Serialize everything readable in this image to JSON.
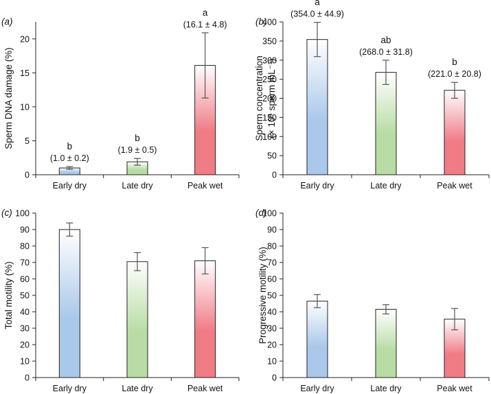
{
  "chart_data": [
    {
      "type": "bar",
      "panel_label": "a",
      "categories": [
        "Early dry",
        "Late dry",
        "Peak wet"
      ],
      "values": [
        1.0,
        1.9,
        16.1
      ],
      "errors": [
        0.2,
        0.5,
        4.8
      ],
      "significance": [
        "b",
        "b",
        "a"
      ],
      "annotations": [
        "(1.0 ± 0.2)",
        "(1.9 ± 0.5)",
        "(16.1 ± 4.8)"
      ],
      "ylabel_main": "Sperm DNA damage (%)",
      "ylabel_second": "",
      "ylim": [
        0,
        22.5
      ],
      "yticks": [
        0,
        5,
        10,
        15,
        20
      ],
      "colors": [
        "#a9c8ea",
        "#b8dca4",
        "#f07c86"
      ]
    },
    {
      "type": "bar",
      "panel_label": "b",
      "categories": [
        "Early dry",
        "Late dry",
        "Peak wet"
      ],
      "values": [
        354.0,
        268.0,
        221.0
      ],
      "errors": [
        44.9,
        31.8,
        20.8
      ],
      "significance": [
        "a",
        "ab",
        "b"
      ],
      "annotations": [
        "(354.0 ± 44.9)",
        "(268.0 ± 31.8)",
        "(221.0 ± 20.8)"
      ],
      "ylabel_main": "Sperm concentration",
      "ylabel_second": "(× 10⁶ sperm mL⁻¹)",
      "ylim": [
        0,
        400
      ],
      "yticks": [
        0,
        50,
        100,
        150,
        200,
        250,
        300,
        350,
        400
      ],
      "colors": [
        "#a9c8ea",
        "#b8dca4",
        "#f07c86"
      ]
    },
    {
      "type": "bar",
      "panel_label": "c",
      "categories": [
        "Early dry",
        "Late dry",
        "Peak wet"
      ],
      "values": [
        90.0,
        70.5,
        71.0
      ],
      "errors": [
        4.0,
        5.5,
        8.0
      ],
      "significance": [
        "",
        "",
        ""
      ],
      "annotations": [
        "",
        "",
        ""
      ],
      "ylabel_main": "Total motility (%)",
      "ylabel_second": "",
      "ylim": [
        0,
        100
      ],
      "yticks": [
        0,
        10,
        20,
        30,
        40,
        50,
        60,
        70,
        80,
        90,
        100
      ],
      "colors": [
        "#a9c8ea",
        "#b8dca4",
        "#f07c86"
      ]
    },
    {
      "type": "bar",
      "panel_label": "d",
      "categories": [
        "Early dry",
        "Late dry",
        "Peak wet"
      ],
      "values": [
        46.5,
        41.5,
        35.5
      ],
      "errors": [
        4.0,
        2.8,
        6.5
      ],
      "significance": [
        "",
        "",
        ""
      ],
      "annotations": [
        "",
        "",
        ""
      ],
      "ylabel_main": "Progressive motility (%)",
      "ylabel_second": "",
      "ylim": [
        0,
        100
      ],
      "yticks": [
        0,
        10,
        20,
        30,
        40,
        50,
        60,
        70,
        80,
        90,
        100
      ],
      "colors": [
        "#a9c8ea",
        "#b8dca4",
        "#f07c86"
      ]
    }
  ]
}
